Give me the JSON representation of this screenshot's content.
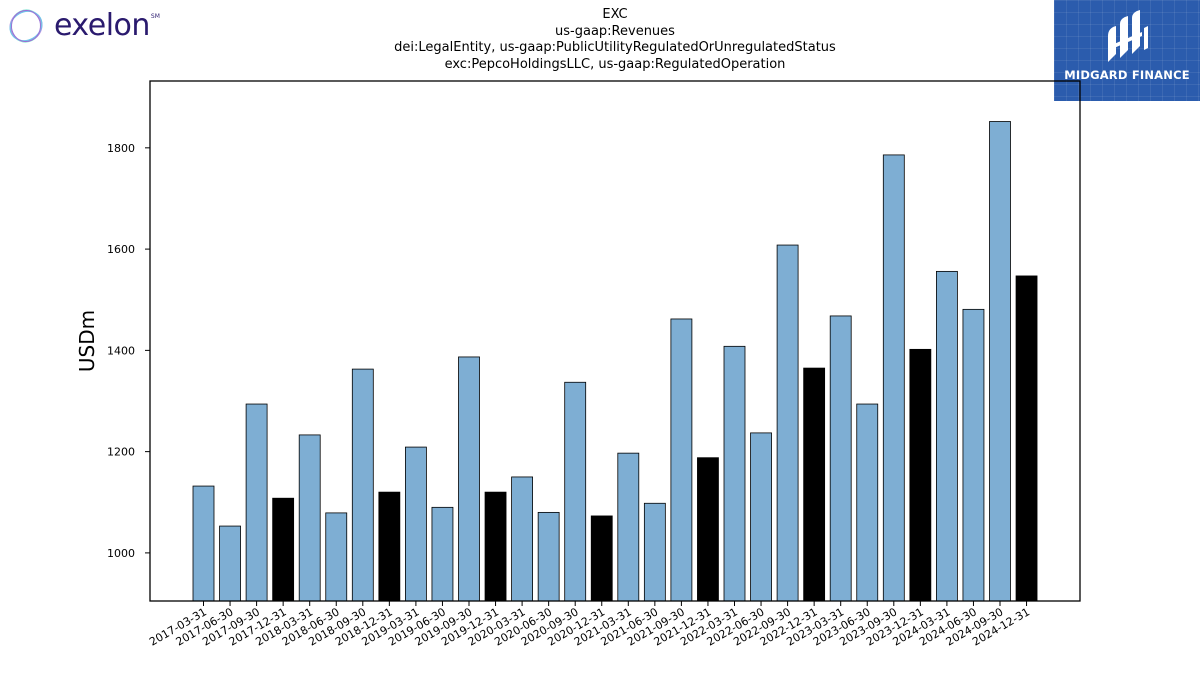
{
  "brand": {
    "left_logo_text": "exelon",
    "left_logo_mark": "SM",
    "right_logo_text": "MIDGARD FINANCE",
    "right_logo_bg": "#2b5cad"
  },
  "colors": {
    "bar_default": "#7eaed3",
    "bar_highlight": "#000000",
    "bar_edge": "#000000"
  },
  "chart_data": {
    "type": "bar",
    "title_lines": [
      "EXC",
      "us-gaap:Revenues",
      "dei:LegalEntity, us-gaap:PublicUtilityRegulatedOrUnregulatedStatus",
      "exc:PepcoHoldingsLLC, us-gaap:RegulatedOperation"
    ],
    "xlabel": "",
    "ylabel": "USDm",
    "ylim": [
      905,
      1932
    ],
    "yticks": [
      1000,
      1200,
      1400,
      1600,
      1800
    ],
    "grid": false,
    "legend": "none",
    "categories": [
      "2017-03-31",
      "2017-06-30",
      "2017-09-30",
      "2017-12-31",
      "2018-03-31",
      "2018-06-30",
      "2018-09-30",
      "2018-12-31",
      "2019-03-31",
      "2019-06-30",
      "2019-09-30",
      "2019-12-31",
      "2020-03-31",
      "2020-06-30",
      "2020-09-30",
      "2020-12-31",
      "2021-03-31",
      "2021-06-30",
      "2021-09-30",
      "2021-12-31",
      "2022-03-31",
      "2022-06-30",
      "2022-09-30",
      "2022-12-31",
      "2023-03-31",
      "2023-06-30",
      "2023-09-30",
      "2023-12-31",
      "2024-03-31",
      "2024-06-30",
      "2024-09-30",
      "2024-12-31"
    ],
    "values": [
      1132,
      1053,
      1294,
      1108,
      1233,
      1079,
      1363,
      1120,
      1209,
      1090,
      1387,
      1120,
      1150,
      1080,
      1337,
      1073,
      1197,
      1098,
      1462,
      1188,
      1408,
      1237,
      1608,
      1365,
      1468,
      1294,
      1786,
      1402,
      1556,
      1481,
      1852,
      1547
    ],
    "highlight": [
      false,
      false,
      false,
      true,
      false,
      false,
      false,
      true,
      false,
      false,
      false,
      true,
      false,
      false,
      false,
      true,
      false,
      false,
      false,
      true,
      false,
      false,
      false,
      true,
      false,
      false,
      false,
      true,
      false,
      false,
      false,
      true
    ]
  }
}
